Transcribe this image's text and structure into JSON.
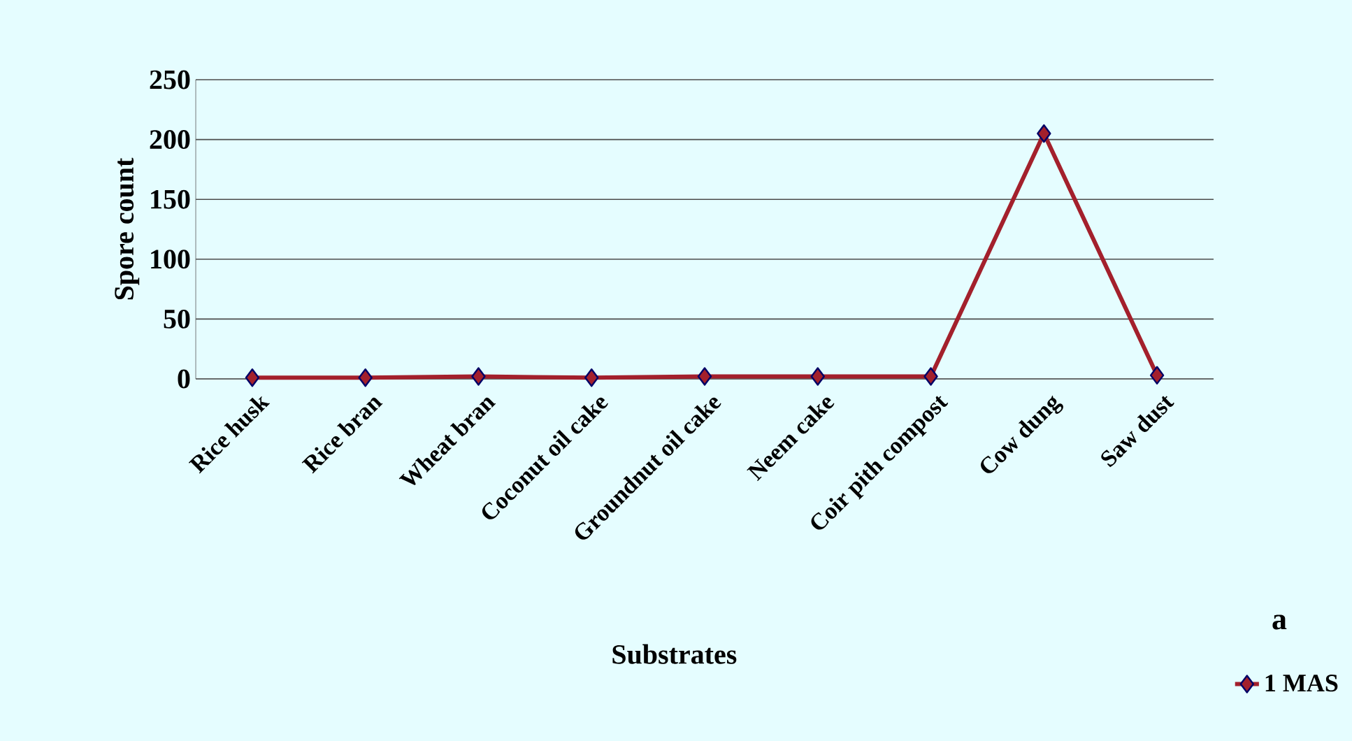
{
  "chart_data": {
    "type": "line",
    "xlabel": "Substrates",
    "ylabel": "Spore count",
    "categories": [
      "Rice husk",
      "Rice bran",
      "Wheat bran",
      "Coconut oil cake",
      "Groundnut oil cake",
      "Neem cake",
      "Coir pith compost",
      "Cow dung",
      "Saw dust"
    ],
    "series": [
      {
        "name": "1 MAS",
        "color": "#a3202c",
        "values": [
          1,
          1,
          2,
          1,
          2,
          2,
          2,
          205,
          3
        ]
      }
    ],
    "ylim": [
      0,
      250
    ],
    "yticks": [
      0,
      50,
      100,
      150,
      200,
      250
    ],
    "grid": "y",
    "legend": "bottom right",
    "marker": "diamond",
    "line_style": "solid",
    "annotations": [
      "a"
    ]
  }
}
